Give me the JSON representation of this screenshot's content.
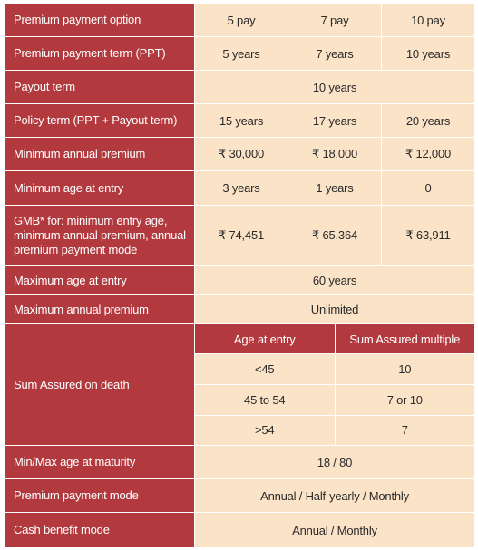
{
  "rows": [
    {
      "label": "Premium payment option",
      "values": [
        "5 pay",
        "7 pay",
        "10 pay"
      ]
    },
    {
      "label": "Premium payment term (PPT)",
      "values": [
        "5 years",
        "7 years",
        "10 years"
      ]
    },
    {
      "label": "Payout term",
      "value": "10 years"
    },
    {
      "label": "Policy term (PPT + Payout term)",
      "values": [
        "15 years",
        "17 years",
        "20 years"
      ]
    },
    {
      "label": "Minimum annual premium",
      "values": [
        "₹ 30,000",
        "₹ 18,000",
        "₹ 12,000"
      ]
    },
    {
      "label": "Minimum age at entry",
      "values": [
        "3 years",
        "1 years",
        "0"
      ]
    },
    {
      "label": "GMB* for: minimum entry age, minimum annual premium, annual premium payment mode",
      "values": [
        "₹ 74,451",
        "₹ 65,364",
        "₹ 63,911"
      ]
    },
    {
      "label": "Maximum age at entry",
      "value": "60 years"
    },
    {
      "label": "Maximum annual premium",
      "value": "Unlimited"
    },
    {
      "label": "Sum Assured on death"
    },
    {
      "label": "Min/Max age at maturity",
      "value": "18 / 80"
    },
    {
      "label": "Premium payment mode",
      "value": "Annual / Half-yearly / Monthly"
    },
    {
      "label": "Cash benefit mode",
      "value": "Annual / Monthly"
    }
  ],
  "sum_assured": {
    "headers": [
      "Age at entry",
      "Sum Assured multiple"
    ],
    "rows": [
      [
        "<45",
        "10"
      ],
      [
        "45 to 54",
        "7 or 10"
      ],
      [
        ">54",
        "7"
      ]
    ]
  }
}
